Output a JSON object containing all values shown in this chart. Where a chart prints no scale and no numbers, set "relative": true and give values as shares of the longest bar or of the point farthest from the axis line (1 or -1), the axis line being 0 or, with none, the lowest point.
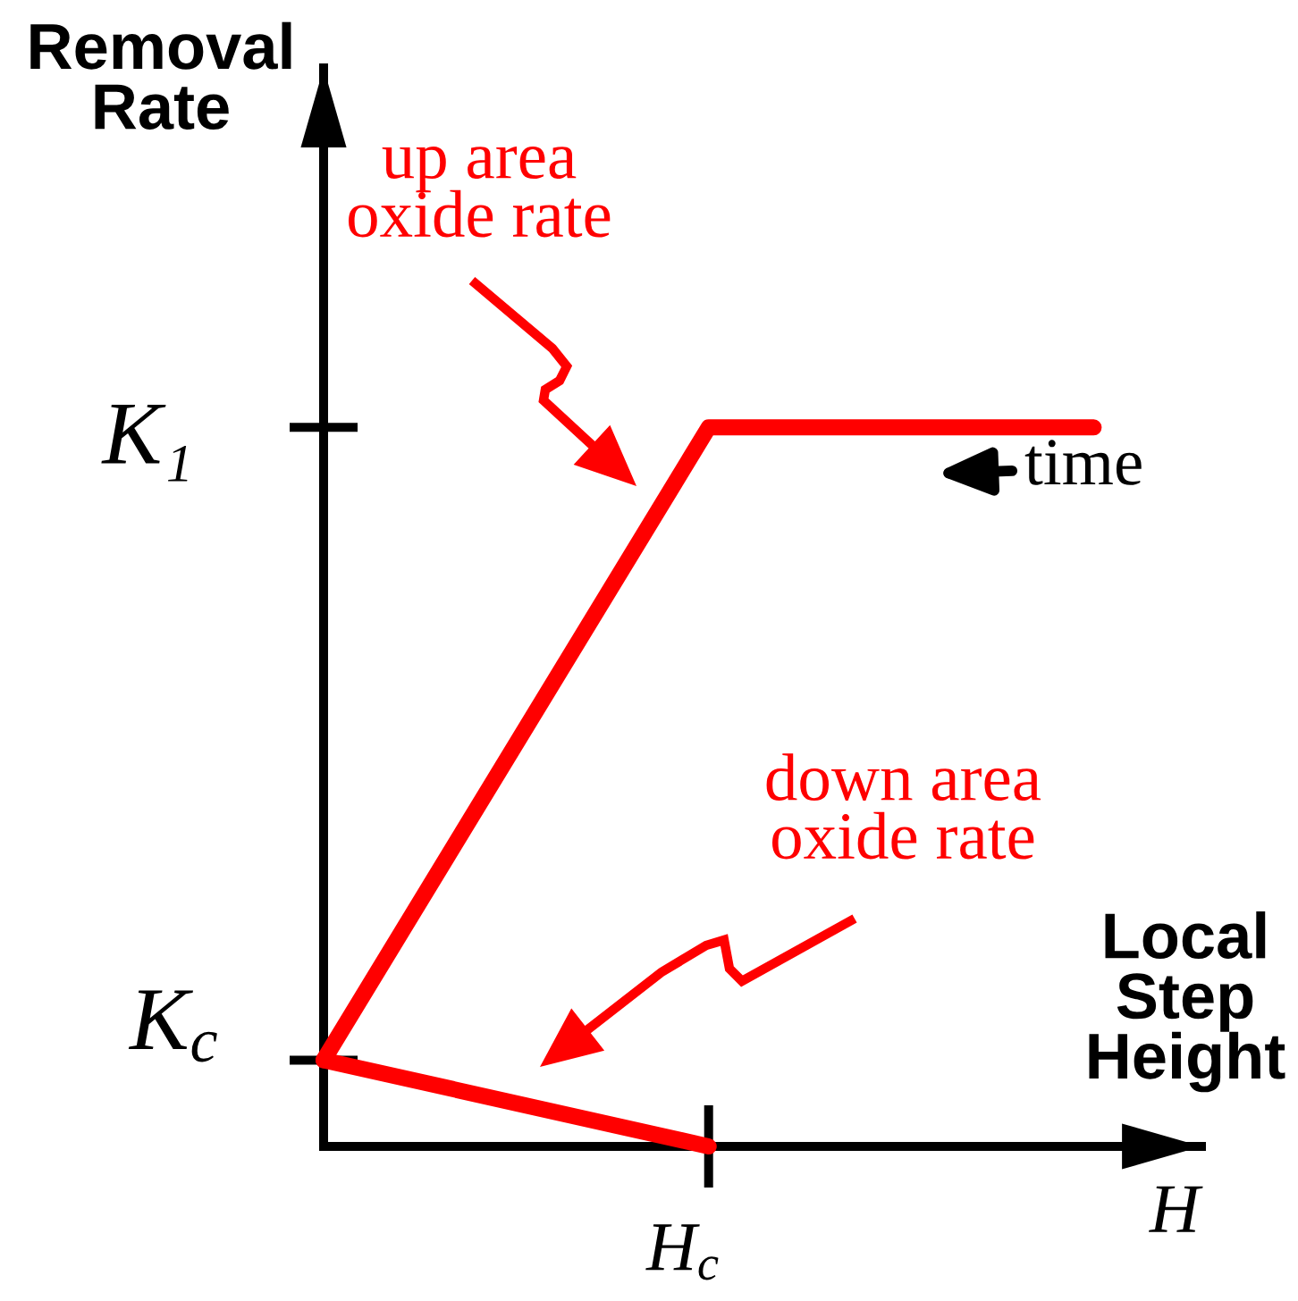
{
  "chart_data": {
    "type": "line",
    "relative": true,
    "xlabel": "Local\nStep\nHeight",
    "ylabel": "Removal\nRate",
    "categories": [
      null,
      null,
      null
    ],
    "series": [
      {
        "color": "#ff0000",
        "values": [
          0.12,
          1,
          1
        ]
      },
      {
        "color": "#ff0000",
        "values": [
          0.12,
          0,
          null
        ]
      }
    ],
    "annotations": [
      "up area\noxide rate",
      "down area\noxide rate",
      "time",
      "K₁",
      "K$_{c}$",
      {
        "text": "H$_{c}$",
        "y": 0
      },
      "H"
    ],
    "line_style": "solid"
  }
}
